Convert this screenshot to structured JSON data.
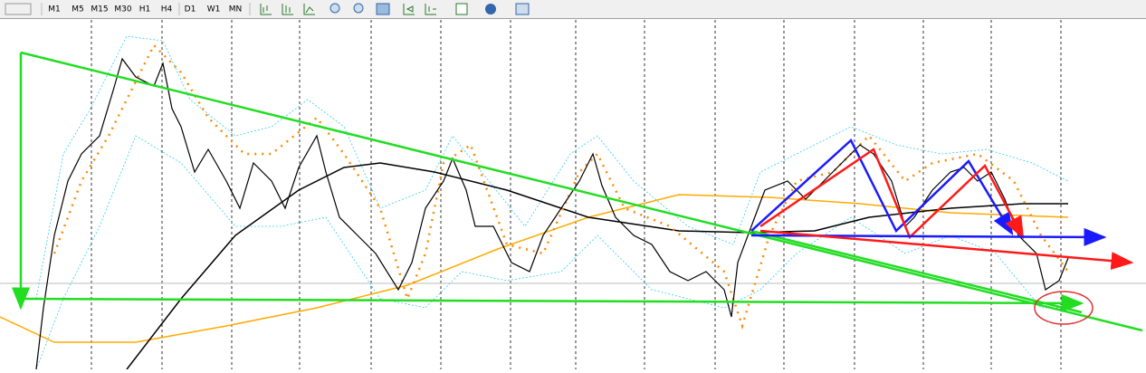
{
  "toolbar": {
    "timeframes": [
      "M1",
      "M5",
      "M15",
      "M30",
      "H1",
      "H4",
      "D1",
      "W1",
      "MN"
    ]
  }
}
